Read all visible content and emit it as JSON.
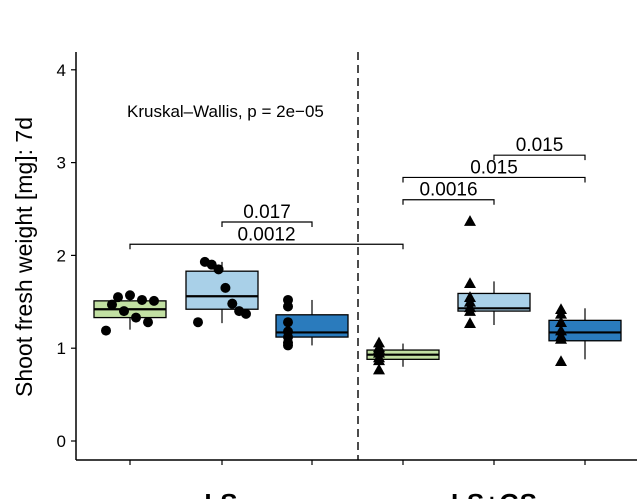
{
  "chart_data": {
    "type": "box",
    "ylabel": "Shoot fresh weight [mg]: 7d",
    "ylim": [
      -0.2,
      4.2
    ],
    "yticks": [
      0,
      1,
      2,
      3,
      4
    ],
    "yticklabels": [
      "0",
      "1",
      "2",
      "3",
      "4"
    ],
    "stat_test": "Kruskal–Wallis, p = 2e−05",
    "groups": [
      {
        "label": "LS",
        "marker": "circle"
      },
      {
        "label": "LS+GS",
        "marker": "triangle"
      }
    ],
    "boxes": [
      {
        "group": "LS",
        "color": "#c2e0a3",
        "q1": 1.33,
        "median": 1.42,
        "q3": 1.51,
        "whisker_low": 1.2,
        "whisker_high": 1.58,
        "points": [
          1.19,
          1.28,
          1.33,
          1.4,
          1.47,
          1.51,
          1.52,
          1.57,
          1.55
        ]
      },
      {
        "group": "LS",
        "color": "#a9d0e8",
        "q1": 1.42,
        "median": 1.56,
        "q3": 1.83,
        "whisker_low": 1.27,
        "whisker_high": 1.93,
        "points": [
          1.28,
          1.37,
          1.4,
          1.48,
          1.65,
          1.85,
          1.9,
          1.93
        ]
      },
      {
        "group": "LS",
        "color": "#2a7bbd",
        "q1": 1.12,
        "median": 1.17,
        "q3": 1.36,
        "whisker_low": 1.03,
        "whisker_high": 1.52,
        "points": [
          1.03,
          1.06,
          1.12,
          1.18,
          1.28,
          1.45,
          1.52
        ]
      },
      {
        "group": "LS+GS",
        "color": "#c2e0a3",
        "q1": 0.88,
        "median": 0.93,
        "q3": 0.98,
        "whisker_low": 0.8,
        "whisker_high": 1.05,
        "points": [
          0.77,
          0.87,
          0.9,
          0.95,
          0.99,
          1.01,
          1.06
        ]
      },
      {
        "group": "LS+GS",
        "color": "#a9d0e8",
        "q1": 1.4,
        "median": 1.43,
        "q3": 1.59,
        "whisker_low": 1.25,
        "whisker_high": 1.72,
        "points": [
          1.27,
          1.4,
          1.44,
          1.5,
          1.55,
          1.7,
          2.37
        ]
      },
      {
        "group": "LS+GS",
        "color": "#2a7bbd",
        "q1": 1.08,
        "median": 1.17,
        "q3": 1.3,
        "whisker_low": 0.88,
        "whisker_high": 1.43,
        "points": [
          0.86,
          1.1,
          1.13,
          1.19,
          1.28,
          1.37,
          1.42
        ]
      }
    ],
    "comparisons": [
      {
        "from": 0,
        "to": 3,
        "y": 2.12,
        "label": "0.0012"
      },
      {
        "from": 1,
        "to": 2,
        "y": 2.36,
        "label": "0.017"
      },
      {
        "from": 3,
        "to": 4,
        "y": 2.6,
        "label": "0.0016"
      },
      {
        "from": 3,
        "to": 5,
        "y": 2.84,
        "label": "0.015"
      },
      {
        "from": 4,
        "to": 5,
        "y": 3.08,
        "label": "0.015"
      }
    ]
  }
}
